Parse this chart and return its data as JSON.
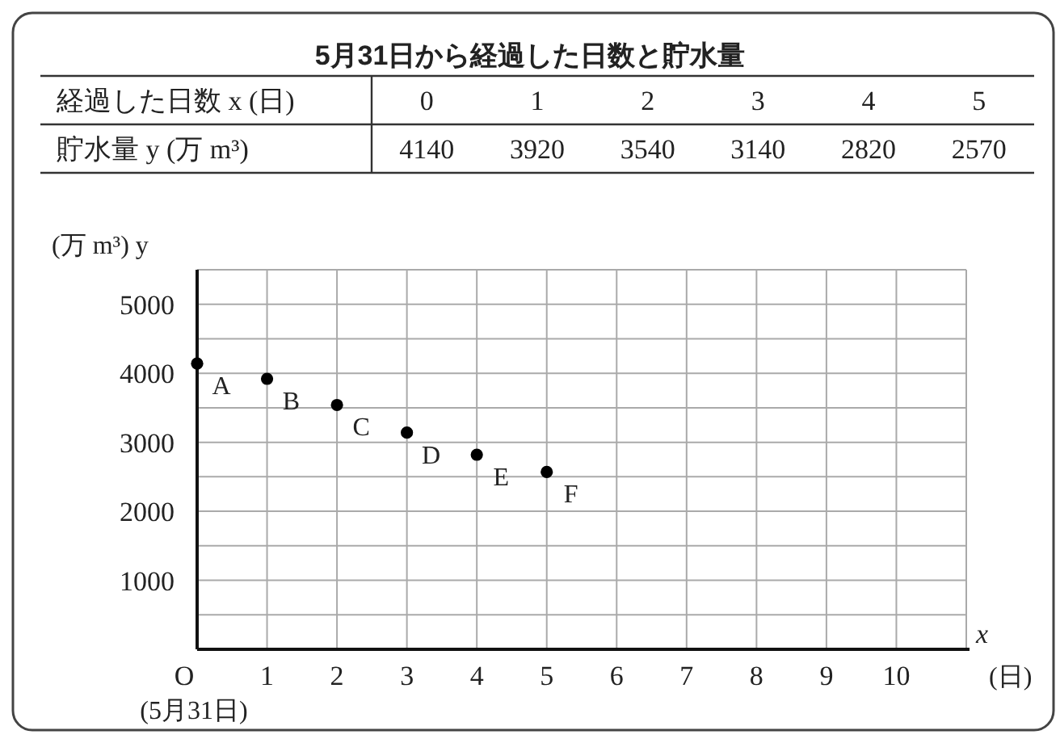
{
  "chart_data": {
    "type": "scatter",
    "title": "5月31日から経過した日数と貯水量",
    "x": [
      0,
      1,
      2,
      3,
      4,
      5
    ],
    "series": [
      {
        "color": "#000000",
        "values": [
          4140,
          3920,
          3540,
          3140,
          2820,
          2570
        ]
      }
    ],
    "marker": "circle",
    "grid": true,
    "xlabel": "x",
    "ylabel": "(万 m³) y",
    "xlim": [
      0,
      11
    ],
    "ylim": [
      0,
      5500
    ],
    "xticks": [
      {
        "value": 0,
        "label": "O"
      },
      1,
      2,
      3,
      4,
      5,
      6,
      7,
      8,
      9,
      10
    ],
    "yticks": [
      {
        "value": 500,
        "label": null
      },
      1000,
      {
        "value": 1500,
        "label": null
      },
      2000,
      {
        "value": 2500,
        "label": null
      },
      3000,
      {
        "value": 3500,
        "label": null
      },
      4000,
      {
        "value": 4500,
        "label": null
      },
      5000
    ],
    "annotations": [
      "経過した日数 x (日)",
      "貯水量 y (万 m³)",
      "(日)",
      "(5月31日)",
      "0",
      "1",
      "2",
      "3",
      "4",
      "5",
      "4140",
      "3920",
      "3540",
      "3140",
      "2820",
      "2570",
      {
        "text": "A",
        "x": 0,
        "y": 4140
      },
      {
        "text": "B",
        "x": 1,
        "y": 3920
      },
      {
        "text": "C",
        "x": 2,
        "y": 3540
      },
      {
        "text": "D",
        "x": 3,
        "y": 3140
      },
      {
        "text": "E",
        "x": 4,
        "y": 2820
      },
      {
        "text": "F",
        "x": 5,
        "y": 2570
      }
    ]
  }
}
